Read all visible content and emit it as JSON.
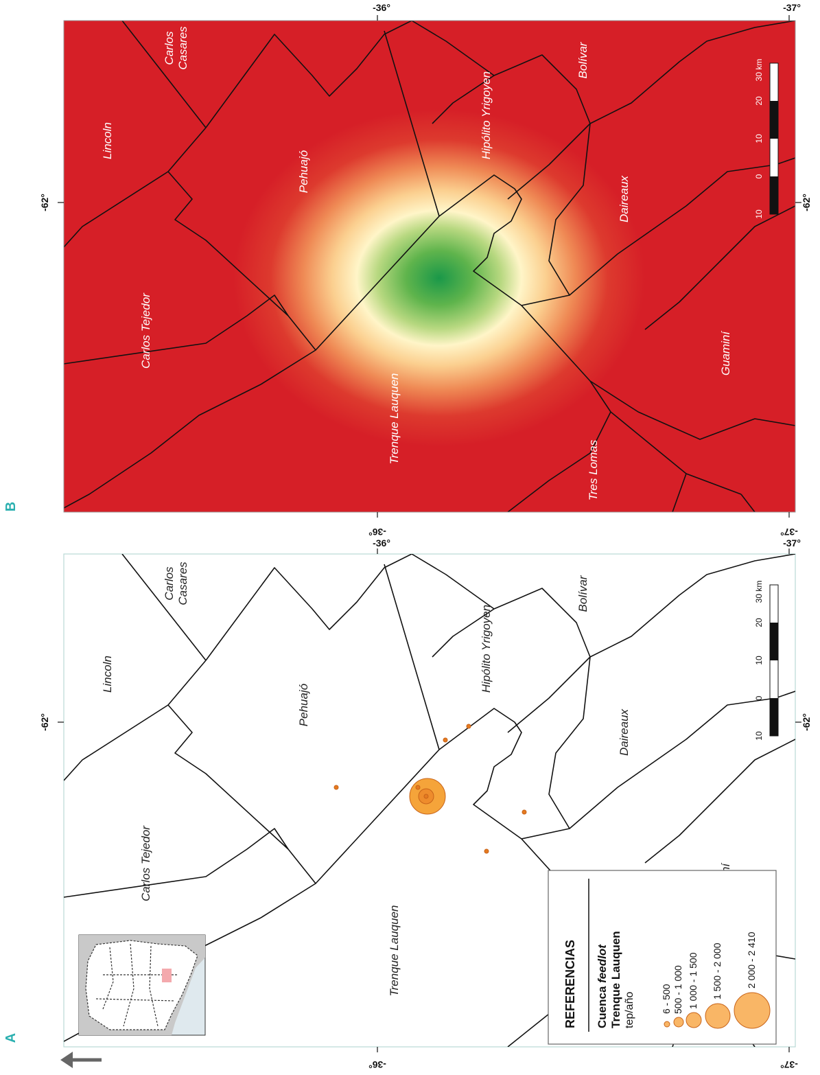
{
  "panel_labels": {
    "a": "A",
    "b": "B"
  },
  "coords": {
    "lon_62": "-62°",
    "lat_36": "-36°",
    "lat_37": "-37°"
  },
  "districts": {
    "lincoln": "Lincoln",
    "carlos_casares_1": "Carlos",
    "carlos_casares_2": "Casares",
    "pehuajo": "Pehuajó",
    "hipolito_yrigoyen": "Hipólito Yrigoyen",
    "bolivar": "Bolívar",
    "daireaux": "Daireaux",
    "carlos_tejedor": "Carlos Tejedor",
    "trenque_lauquen": "Trenque Lauquen",
    "guamini": "Guaminí",
    "tres_lomas": "Tres Lomas"
  },
  "scale_bar": {
    "ticks": [
      "10",
      "0",
      "10",
      "20",
      "30 km"
    ]
  },
  "legend": {
    "title": "REFERENCIAS",
    "subtitle_plain": "Cuenca ",
    "subtitle_italic": "feedlot",
    "subtitle_2": "Trenque Lauquen",
    "unit": "tep/año",
    "classes": [
      "6 - 500",
      "500 - 1 000",
      "1 000 - 1 500",
      "1 500 - 2 000",
      "2 000 - 2 410"
    ]
  },
  "colors": {
    "accent_label": "#2bb0b0",
    "district_fill_b": "#d61f27",
    "hot_center": "#1f9b4a",
    "point_fill": "#f5a43a",
    "point_stroke": "#c8641a",
    "legend_fill": "#f9b666"
  }
}
